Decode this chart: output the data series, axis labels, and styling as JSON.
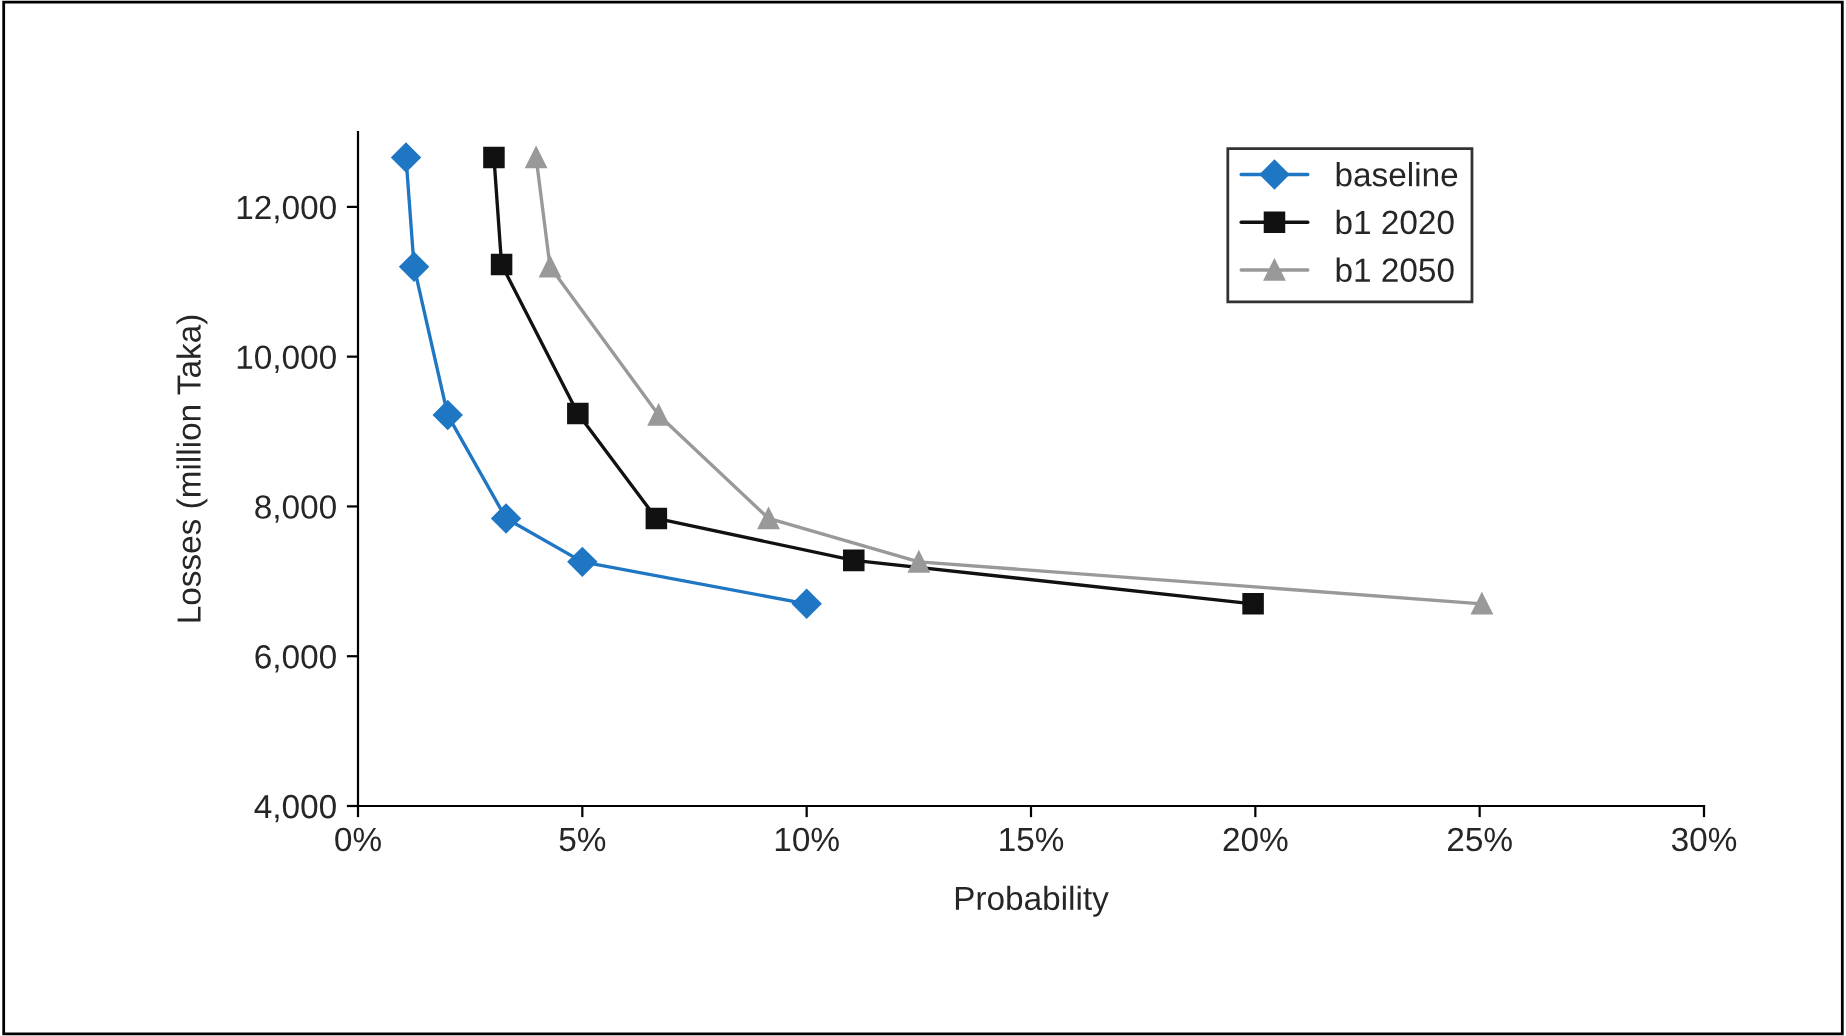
{
  "chart_data": {
    "type": "line",
    "xlabel": "Probability",
    "ylabel": "Losses (million Taka)",
    "series": [
      {
        "name": "baseline",
        "color": "#1f77c4",
        "marker": "diamond",
        "x": [
          1.07,
          1.25,
          2.0,
          3.3,
          5.0,
          10.0
        ],
        "values": [
          12660,
          11200,
          9220,
          7840,
          7260,
          6700
        ]
      },
      {
        "name": "b1 2020",
        "color": "#111111",
        "marker": "square",
        "x": [
          3.03,
          3.2,
          4.9,
          6.65,
          11.05,
          19.95
        ],
        "values": [
          12660,
          11230,
          9240,
          7840,
          7280,
          6700
        ]
      },
      {
        "name": "b1 2050",
        "color": "#999999",
        "marker": "triangle",
        "x": [
          3.97,
          4.28,
          6.7,
          9.15,
          12.5,
          25.05
        ],
        "values": [
          12660,
          11200,
          9220,
          7840,
          7260,
          6700
        ]
      }
    ],
    "xlim": [
      0,
      30
    ],
    "xticks": [
      {
        "value": 0,
        "label": "0%"
      },
      {
        "value": 5,
        "label": "5%"
      },
      {
        "value": 10,
        "label": "10%"
      },
      {
        "value": 15,
        "label": "15%"
      },
      {
        "value": 20,
        "label": "20%"
      },
      {
        "value": 25,
        "label": "25%"
      },
      {
        "value": 30,
        "label": "30%"
      }
    ],
    "ylim": [
      4000,
      13000
    ],
    "yticks": [
      {
        "value": 4000,
        "label": "4,000"
      },
      {
        "value": 6000,
        "label": "6,000"
      },
      {
        "value": 8000,
        "label": "8,000"
      },
      {
        "value": 10000,
        "label": "10,000"
      },
      {
        "value": 12000,
        "label": "12,000"
      }
    ],
    "grid": false,
    "legend": "top right",
    "line_style": "solid"
  }
}
